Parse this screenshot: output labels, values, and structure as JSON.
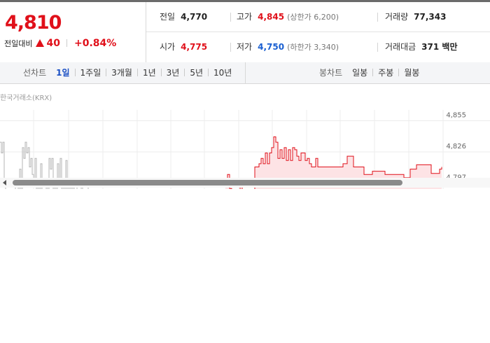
{
  "quote": {
    "price": "4,810",
    "change_label": "전일대비",
    "change_amount": "40",
    "change_percent": "+0.84%",
    "up_color": "#e0101a",
    "down_color": "#1a5fd1",
    "prev_label": "전일",
    "prev_value": "4,770",
    "high_label": "고가",
    "high_value": "4,845",
    "upper_limit_label": "(상한가 6,200)",
    "volume_label": "거래량",
    "volume_value": "77,343",
    "open_label": "시가",
    "open_value": "4,775",
    "low_label": "저가",
    "low_value": "4,750",
    "lower_limit_label": "(하한가 3,340)",
    "amount_label": "거래대금",
    "amount_value": "371 백만"
  },
  "tabs": {
    "line_title": "선차트",
    "line_tabs": [
      "1일",
      "1주일",
      "3개월",
      "1년",
      "3년",
      "5년",
      "10년"
    ],
    "active_line_tab": "1일",
    "candle_title": "봉차트",
    "candle_tabs": [
      "일봉",
      "주봉",
      "월봉"
    ]
  },
  "chart_source": "한국거래소(KRX)",
  "chart_data": {
    "type": "line",
    "title": "",
    "ytick_labels": [
      "4,855",
      "4,826",
      "4,797"
    ],
    "y_ticks": [
      4855,
      4826,
      4797
    ],
    "ylim": [
      4785,
      4865
    ],
    "grid": true,
    "series": [
      {
        "color": "#b5b5b5",
        "x": [
          0,
          2,
          4,
          6,
          8,
          10,
          12,
          14,
          16,
          18,
          20,
          22,
          24,
          26,
          28,
          30,
          32,
          34,
          36,
          38,
          40,
          42,
          44,
          46,
          48,
          50,
          52,
          54,
          56,
          58,
          60,
          62,
          64,
          66,
          68,
          70,
          72,
          74,
          76,
          78,
          80,
          82,
          84,
          86,
          88,
          90,
          92,
          94,
          96,
          98,
          100,
          102,
          104,
          106,
          108,
          110,
          112,
          114,
          116,
          118,
          120,
          122,
          124,
          126,
          128,
          130
        ],
        "y": [
          4835,
          4825,
          4835,
          4800,
          4790,
          4790,
          4790,
          4790,
          4790,
          4790,
          4790,
          4800,
          4800,
          4790,
          4810,
          4790,
          4830,
          4820,
          4835,
          4825,
          4830,
          4812,
          4820,
          4805,
          4800,
          4820,
          4790,
          4800,
          4790,
          4815,
          4790,
          4790,
          4790,
          4800,
          4790,
          4820,
          4810,
          4820,
          4790,
          4800,
          4790,
          4815,
          4795,
          4820,
          4790,
          4800,
          4790,
          4818,
          4790,
          4800,
          4790,
          4795,
          4790,
          4800,
          4800,
          4790,
          4790,
          4790,
          4795,
          4790,
          4790,
          4790,
          4790,
          4795,
          4797,
          4797
        ]
      },
      {
        "color": "#e0101a",
        "fill": "#fde3e5",
        "x": [
          322,
          325,
          328,
          331,
          334,
          337,
          340,
          343,
          346,
          349,
          352,
          355,
          358,
          361,
          364,
          367,
          370,
          373,
          376,
          379,
          382,
          385,
          388,
          391,
          394,
          397,
          400,
          403,
          406,
          409,
          412,
          415,
          418,
          421,
          424,
          427,
          430,
          433,
          436,
          439,
          442,
          445,
          448,
          451,
          454,
          457,
          460,
          463,
          466,
          469,
          472,
          475,
          478,
          481,
          484,
          487,
          490,
          493,
          496,
          499,
          502,
          505,
          508,
          511,
          514,
          517,
          520,
          523,
          526,
          529,
          532,
          535,
          538,
          541,
          544,
          547,
          550,
          553,
          556,
          559,
          562,
          565,
          568,
          571,
          574,
          577,
          580,
          583,
          586,
          589,
          592,
          595,
          598,
          601,
          604,
          607,
          610,
          613,
          616,
          619,
          622,
          625,
          628,
          631
        ],
        "y": [
          4800,
          4805,
          4792,
          4790,
          4790,
          4790,
          4790,
          4795,
          4790,
          4790,
          4790,
          4788,
          4790,
          4790,
          4812,
          4812,
          4815,
          4820,
          4815,
          4825,
          4815,
          4825,
          4830,
          4840,
          4835,
          4820,
          4828,
          4820,
          4830,
          4818,
          4828,
          4818,
          4830,
          4828,
          4822,
          4818,
          4825,
          4825,
          4818,
          4820,
          4815,
          4812,
          4812,
          4820,
          4812,
          4812,
          4812,
          4812,
          4812,
          4812,
          4812,
          4812,
          4812,
          4812,
          4812,
          4812,
          4815,
          4815,
          4822,
          4822,
          4822,
          4812,
          4812,
          4812,
          4812,
          4812,
          4805,
          4805,
          4805,
          4805,
          4808,
          4808,
          4808,
          4808,
          4808,
          4808,
          4805,
          4805,
          4805,
          4805,
          4805,
          4805,
          4805,
          4805,
          4805,
          4802,
          4802,
          4802,
          4810,
          4810,
          4810,
          4814,
          4814,
          4814,
          4814,
          4814,
          4814,
          4814,
          4806,
          4806,
          4806,
          4806,
          4810,
          4812
        ]
      }
    ]
  }
}
